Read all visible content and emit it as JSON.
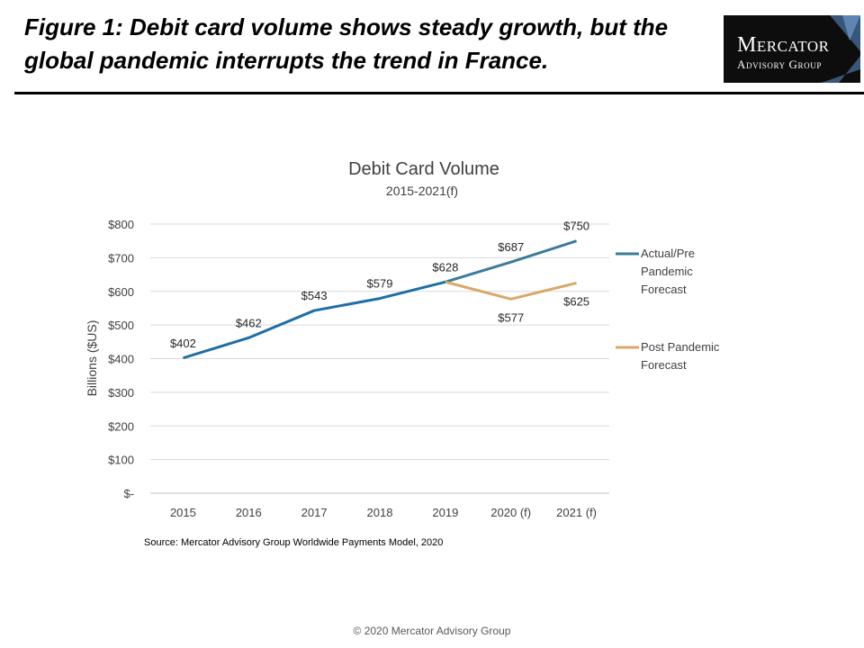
{
  "header": {
    "title": "Figure 1: Debit card volume shows steady growth, but the global pandemic interrupts the trend in France."
  },
  "logo": {
    "line1": "Mercator",
    "line2": "Advisory Group"
  },
  "chart_data": {
    "type": "line",
    "title": "Debit Card Volume",
    "subtitle": "2015-2021(f)",
    "xlabel": "",
    "ylabel": "Billions ($US)",
    "categories": [
      "2015",
      "2016",
      "2017",
      "2018",
      "2019",
      "2020 (f)",
      "2021 (f)"
    ],
    "ylim": [
      0,
      800
    ],
    "yticks": [
      0,
      100,
      200,
      300,
      400,
      500,
      600,
      700,
      800
    ],
    "ytick_labels": [
      "$-",
      "$100",
      "$200",
      "$300",
      "$400",
      "$500",
      "$600",
      "$700",
      "$800"
    ],
    "grid": true,
    "legend_position": "right",
    "series": [
      {
        "name": "Actual/Pre Pandemic Forecast",
        "color": "#1f6ea8",
        "forecast_color": "#3b7c9a",
        "values": [
          402,
          462,
          543,
          579,
          628,
          687,
          750
        ],
        "labels": [
          "$402",
          "$462",
          "$543",
          "$579",
          "$628",
          "$687",
          "$750"
        ]
      },
      {
        "name": "Post Pandemic Forecast",
        "color": "#d9a868",
        "start_index": 4,
        "values": [
          null,
          null,
          null,
          null,
          628,
          577,
          625
        ],
        "labels": [
          "",
          "",
          "",
          "",
          "",
          "$577",
          "$625"
        ]
      }
    ]
  },
  "footer": {
    "source": "Source: Mercator Advisory Group Worldwide Payments Model, 2020",
    "copyright": "© 2020 Mercator Advisory Group"
  }
}
